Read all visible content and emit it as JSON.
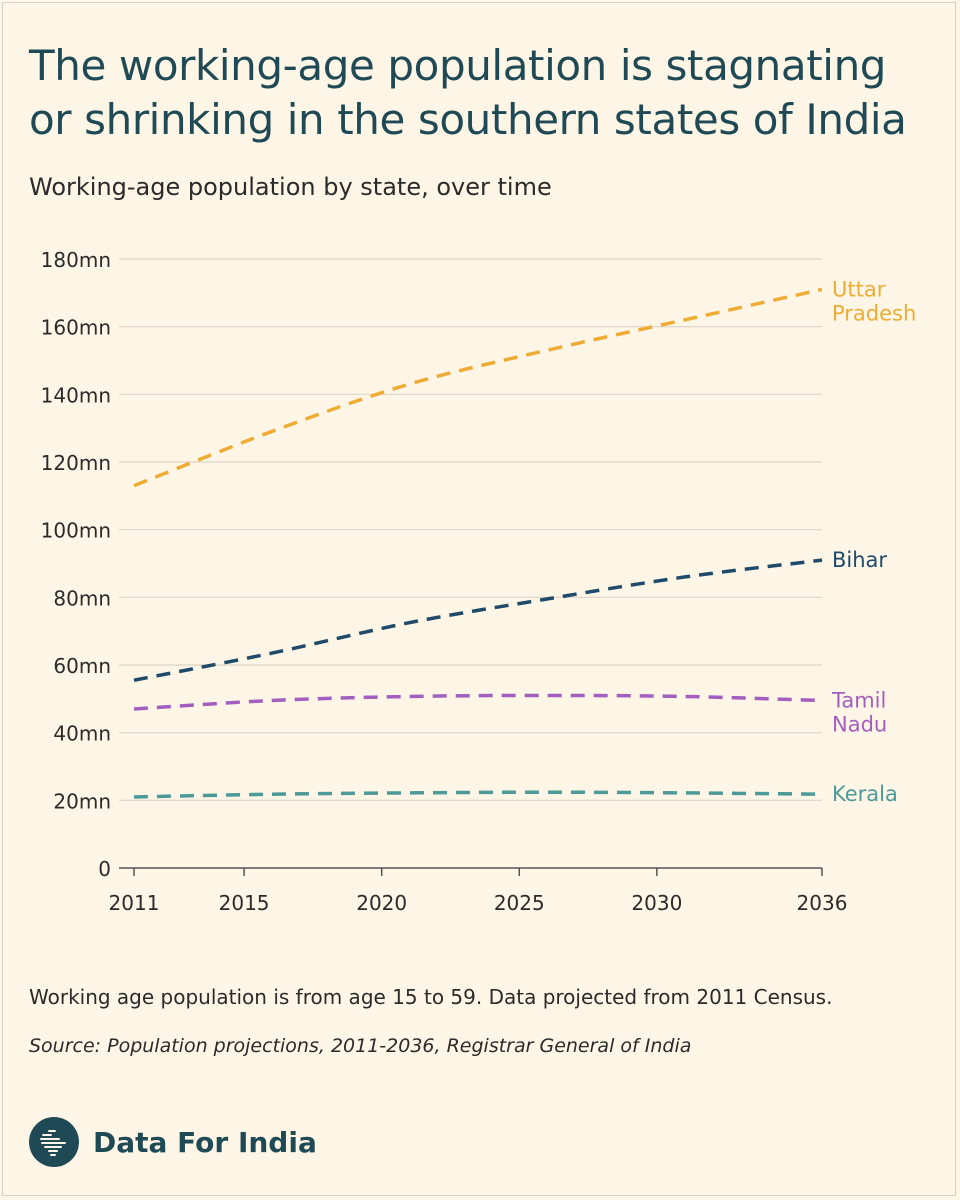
{
  "header": {
    "title": "The working-age population is stagnating or shrinking in the southern states of India",
    "subtitle": "Working-age population by state, over time"
  },
  "footer": {
    "note": "Working age population is from age 15 to 59. Data projected from 2011 Census.",
    "source": "Source: Population projections, 2011-2036, Registrar General of India",
    "brand": "Data For India"
  },
  "colors": {
    "background": "#fdf5e6",
    "title": "#1f4a55",
    "uttar_pradesh": "#eeac34",
    "bihar": "#1f4a6a",
    "tamil_nadu": "#a35fbf",
    "kerala": "#4d9a98"
  },
  "chart_data": {
    "type": "line",
    "title": "The working-age population is stagnating or shrinking in the southern states of India",
    "subtitle": "Working-age population by state, over time",
    "xlabel": "",
    "ylabel": "",
    "x": [
      2011,
      2016,
      2021,
      2026,
      2031,
      2036
    ],
    "x_ticks": [
      2011,
      2015,
      2020,
      2025,
      2030,
      2036
    ],
    "y_ticks": [
      0,
      20,
      40,
      60,
      80,
      100,
      120,
      140,
      160,
      180
    ],
    "y_tick_labels": [
      "0",
      "20mn",
      "40mn",
      "60mn",
      "80mn",
      "100mn",
      "120mn",
      "140mn",
      "160mn",
      "180mn"
    ],
    "ylim": [
      0,
      180
    ],
    "grid": true,
    "legend": "direct labels at line ends",
    "series": [
      {
        "name": "Uttar Pradesh",
        "label_lines": [
          "Uttar",
          "Pradesh"
        ],
        "color": "#eeac34",
        "values": [
          113,
          129,
          143,
          153,
          162,
          171
        ]
      },
      {
        "name": "Bihar",
        "label_lines": [
          "Bihar"
        ],
        "color": "#1f4a6a",
        "values": [
          55.5,
          63.5,
          72.5,
          79.5,
          86,
          91
        ]
      },
      {
        "name": "Tamil Nadu",
        "label_lines": [
          "Tamil",
          "Nadu"
        ],
        "color": "#a35fbf",
        "values": [
          47,
          49.5,
          50.7,
          51,
          50.7,
          49.5
        ]
      },
      {
        "name": "Kerala",
        "label_lines": [
          "Kerala"
        ],
        "color": "#4d9a98",
        "values": [
          21,
          21.8,
          22.2,
          22.4,
          22.2,
          21.8
        ]
      }
    ]
  }
}
